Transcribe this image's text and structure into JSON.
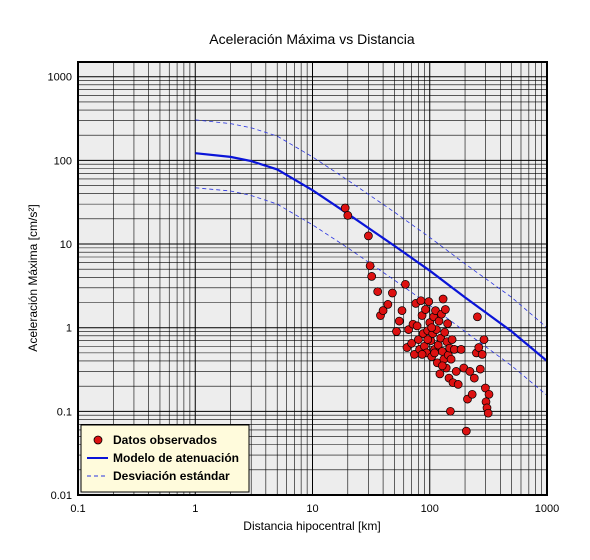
{
  "chart_data": {
    "type": "scatter",
    "title": "Aceleración Máxima vs Distancia",
    "xlabel": "Distancia hipocentral [km]",
    "ylabel": "Aceleración Máxima [cm/s²]",
    "xscale": "log",
    "yscale": "log",
    "xlim": [
      0.1,
      1000
    ],
    "ylim": [
      0.01,
      1500
    ],
    "grid": true,
    "xticks": [
      "0.1",
      "1",
      "10",
      "100",
      "1000"
    ],
    "yticks": [
      "0.01",
      "0.1",
      "1",
      "10",
      "100",
      "1000"
    ],
    "legend_position": "bottom-left",
    "legend": [
      {
        "label": "Datos observados",
        "kind": "marker",
        "color": "#dd1111"
      },
      {
        "label": "Modelo de atenuación",
        "kind": "solid-line",
        "color": "#0a14d8"
      },
      {
        "label": "Desviación estándar",
        "kind": "dashed-line",
        "color": "#2a34e0"
      }
    ],
    "series": [
      {
        "name": "Datos observados",
        "color": "#dd1111",
        "points": [
          [
            19,
            27
          ],
          [
            20,
            22
          ],
          [
            30,
            12.5
          ],
          [
            31,
            5.5
          ],
          [
            32,
            4.1
          ],
          [
            36,
            2.7
          ],
          [
            38,
            1.4
          ],
          [
            40,
            1.6
          ],
          [
            44,
            1.9
          ],
          [
            48,
            2.6
          ],
          [
            52,
            0.9
          ],
          [
            55,
            1.2
          ],
          [
            58,
            1.6
          ],
          [
            62,
            3.3
          ],
          [
            64,
            0.58
          ],
          [
            66,
            0.95
          ],
          [
            70,
            0.65
          ],
          [
            72,
            1.1
          ],
          [
            74,
            0.48
          ],
          [
            76,
            1.95
          ],
          [
            78,
            1.05
          ],
          [
            80,
            0.72
          ],
          [
            82,
            0.55
          ],
          [
            84,
            2.1
          ],
          [
            86,
            1.4
          ],
          [
            88,
            0.85
          ],
          [
            90,
            0.6
          ],
          [
            92,
            1.65
          ],
          [
            94,
            0.5
          ],
          [
            96,
            0.92
          ],
          [
            98,
            2.05
          ],
          [
            100,
            1.15
          ],
          [
            102,
            0.7
          ],
          [
            104,
            0.45
          ],
          [
            106,
            0.85
          ],
          [
            108,
            1.35
          ],
          [
            110,
            0.55
          ],
          [
            112,
            1.6
          ],
          [
            114,
            0.95
          ],
          [
            116,
            0.38
          ],
          [
            118,
            0.62
          ],
          [
            120,
            1.2
          ],
          [
            122,
            0.28
          ],
          [
            124,
            0.75
          ],
          [
            126,
            1.45
          ],
          [
            128,
            0.52
          ],
          [
            130,
            2.2
          ],
          [
            132,
            0.42
          ],
          [
            134,
            0.88
          ],
          [
            136,
            1.65
          ],
          [
            138,
            0.33
          ],
          [
            140,
            0.68
          ],
          [
            142,
            1.12
          ],
          [
            144,
            0.47
          ],
          [
            146,
            0.25
          ],
          [
            148,
            0.57
          ],
          [
            150,
            0.1
          ],
          [
            152,
            0.42
          ],
          [
            155,
            0.72
          ],
          [
            158,
            0.22
          ],
          [
            162,
            0.55
          ],
          [
            168,
            0.3
          ],
          [
            175,
            0.21
          ],
          [
            185,
            0.55
          ],
          [
            195,
            0.33
          ],
          [
            205,
            0.058
          ],
          [
            210,
            0.14
          ],
          [
            220,
            0.3
          ],
          [
            230,
            0.16
          ],
          [
            240,
            0.25
          ],
          [
            250,
            0.5
          ],
          [
            255,
            1.35
          ],
          [
            262,
            0.58
          ],
          [
            270,
            0.32
          ],
          [
            280,
            0.48
          ],
          [
            290,
            0.72
          ],
          [
            298,
            0.19
          ],
          [
            302,
            0.13
          ],
          [
            308,
            0.11
          ],
          [
            315,
            0.095
          ],
          [
            320,
            0.16
          ],
          [
            110,
            0.5
          ],
          [
            96,
            0.72
          ],
          [
            128,
            0.35
          ],
          [
            86,
            0.48
          ],
          [
            104,
            1.0
          ]
        ]
      },
      {
        "name": "Modelo de atenuación",
        "color": "#0a14d8",
        "points": [
          [
            1,
            122
          ],
          [
            2,
            110
          ],
          [
            3,
            98
          ],
          [
            5,
            78
          ],
          [
            10,
            44
          ],
          [
            20,
            23
          ],
          [
            50,
            9.5
          ],
          [
            100,
            4.8
          ],
          [
            200,
            2.3
          ],
          [
            500,
            0.9
          ],
          [
            1000,
            0.4
          ]
        ]
      },
      {
        "name": "Desviación estándar (superior)",
        "color": "#2a34e0",
        "points": [
          [
            1,
            305
          ],
          [
            2,
            275
          ],
          [
            3,
            245
          ],
          [
            5,
            195
          ],
          [
            10,
            110
          ],
          [
            20,
            58
          ],
          [
            50,
            24
          ],
          [
            100,
            12
          ],
          [
            200,
            5.8
          ],
          [
            500,
            2.3
          ],
          [
            1000,
            1.0
          ]
        ]
      },
      {
        "name": "Desviación estándar (inferior)",
        "color": "#2a34e0",
        "points": [
          [
            1,
            47
          ],
          [
            2,
            43
          ],
          [
            3,
            38
          ],
          [
            5,
            30
          ],
          [
            10,
            17
          ],
          [
            20,
            9
          ],
          [
            50,
            3.7
          ],
          [
            100,
            1.85
          ],
          [
            200,
            0.9
          ],
          [
            500,
            0.35
          ],
          [
            1000,
            0.155
          ]
        ]
      }
    ]
  }
}
